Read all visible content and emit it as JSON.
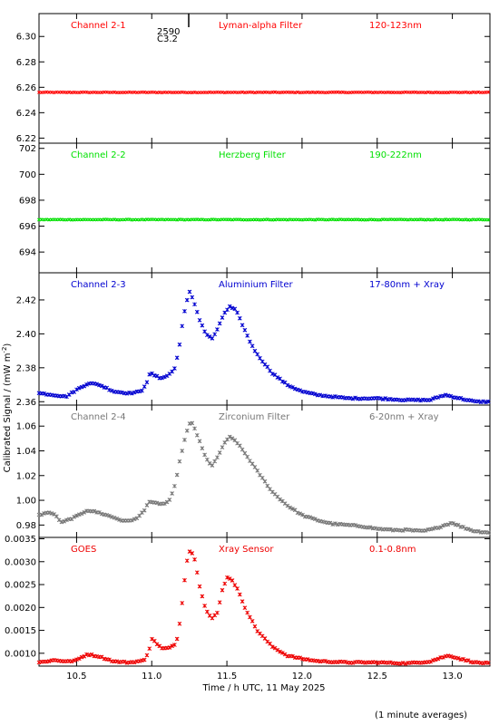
{
  "figure": {
    "ylabel": "Calibrated Signal / (mW m",
    "ylabel_exp": "-2",
    "ylabel_close": ")",
    "xlabel": "Time / h UTC, 11 May 2025",
    "footnote": "(1 minute averages)",
    "event_marker": {
      "label_top": "2590",
      "label_bottom": "C3.2",
      "time": 11.25
    }
  },
  "chart_data": [
    {
      "type": "scatter",
      "channel": "Channel 2-1",
      "filter": "Lyman-alpha Filter",
      "band": "120-123nm",
      "color": "#ff0000",
      "xlim": [
        10.25,
        13.25
      ],
      "ylim": [
        6.216,
        6.318
      ],
      "yticks": [
        6.22,
        6.24,
        6.26,
        6.28,
        6.3
      ],
      "ytick_labels": [
        "6.22",
        "6.24",
        "6.26",
        "6.28",
        "6.30"
      ],
      "points": [
        [
          10.25,
          6.256
        ],
        [
          10.5,
          6.256
        ],
        [
          10.75,
          6.256
        ],
        [
          11.0,
          6.256
        ],
        [
          11.25,
          6.256
        ],
        [
          11.5,
          6.256
        ],
        [
          11.75,
          6.256
        ],
        [
          12.0,
          6.256
        ],
        [
          12.25,
          6.256
        ],
        [
          12.5,
          6.256
        ],
        [
          12.75,
          6.256
        ],
        [
          13.0,
          6.256
        ],
        [
          13.25,
          6.256
        ]
      ]
    },
    {
      "type": "scatter",
      "channel": "Channel 2-2",
      "filter": "Herzberg Filter",
      "band": "190-222nm",
      "color": "#00e000",
      "xlim": [
        10.25,
        13.25
      ],
      "ylim": [
        692.4,
        702.4
      ],
      "yticks": [
        694,
        696,
        698,
        700,
        702
      ],
      "ytick_labels": [
        "694",
        "696",
        "698",
        "700",
        "702"
      ],
      "points": [
        [
          10.25,
          696.5
        ],
        [
          10.5,
          696.5
        ],
        [
          10.75,
          696.5
        ],
        [
          11.0,
          696.5
        ],
        [
          11.25,
          696.5
        ],
        [
          11.5,
          696.5
        ],
        [
          11.75,
          696.5
        ],
        [
          12.0,
          696.5
        ],
        [
          12.25,
          696.5
        ],
        [
          12.5,
          696.5
        ],
        [
          12.75,
          696.5
        ],
        [
          13.0,
          696.5
        ],
        [
          13.25,
          696.5
        ]
      ]
    },
    {
      "type": "scatter",
      "channel": "Channel 2-3",
      "filter": "Aluminium Filter",
      "band": "17-80nm + Xray",
      "color": "#0000d0",
      "xlim": [
        10.25,
        13.25
      ],
      "ylim": [
        2.358,
        2.436
      ],
      "yticks": [
        2.36,
        2.38,
        2.4,
        2.42
      ],
      "ytick_labels": [
        "2.36",
        "2.38",
        "2.40",
        "2.42"
      ],
      "points": [
        [
          10.25,
          2.365
        ],
        [
          10.35,
          2.364
        ],
        [
          10.43,
          2.363
        ],
        [
          10.5,
          2.367
        ],
        [
          10.58,
          2.371
        ],
        [
          10.65,
          2.37
        ],
        [
          10.75,
          2.366
        ],
        [
          10.85,
          2.365
        ],
        [
          10.93,
          2.366
        ],
        [
          10.97,
          2.372
        ],
        [
          10.99,
          2.377
        ],
        [
          11.05,
          2.374
        ],
        [
          11.1,
          2.375
        ],
        [
          11.15,
          2.379
        ],
        [
          11.18,
          2.39
        ],
        [
          11.2,
          2.404
        ],
        [
          11.22,
          2.414
        ],
        [
          11.25,
          2.425
        ],
        [
          11.28,
          2.419
        ],
        [
          11.32,
          2.408
        ],
        [
          11.36,
          2.4
        ],
        [
          11.4,
          2.397
        ],
        [
          11.44,
          2.403
        ],
        [
          11.48,
          2.412
        ],
        [
          11.52,
          2.416
        ],
        [
          11.56,
          2.414
        ],
        [
          11.6,
          2.406
        ],
        [
          11.65,
          2.396
        ],
        [
          11.7,
          2.388
        ],
        [
          11.8,
          2.377
        ],
        [
          11.9,
          2.37
        ],
        [
          12.0,
          2.366
        ],
        [
          12.1,
          2.364
        ],
        [
          12.3,
          2.362
        ],
        [
          12.5,
          2.362
        ],
        [
          12.7,
          2.361
        ],
        [
          12.85,
          2.361
        ],
        [
          12.95,
          2.364
        ],
        [
          13.05,
          2.362
        ],
        [
          13.15,
          2.36
        ],
        [
          13.25,
          2.36
        ]
      ]
    },
    {
      "type": "scatter",
      "channel": "Channel 2-4",
      "filter": "Zirconium Filter",
      "band": "6-20nm + Xray",
      "color": "#777777",
      "xlim": [
        10.25,
        13.25
      ],
      "ylim": [
        0.97,
        1.077
      ],
      "yticks": [
        0.98,
        1.0,
        1.02,
        1.04,
        1.06
      ],
      "ytick_labels": [
        "0.98",
        "1.00",
        "1.02",
        "1.04",
        "1.06"
      ],
      "points": [
        [
          10.25,
          0.988
        ],
        [
          10.3,
          0.99
        ],
        [
          10.35,
          0.989
        ],
        [
          10.4,
          0.982
        ],
        [
          10.5,
          0.987
        ],
        [
          10.57,
          0.992
        ],
        [
          10.65,
          0.99
        ],
        [
          10.75,
          0.986
        ],
        [
          10.82,
          0.983
        ],
        [
          10.9,
          0.985
        ],
        [
          10.95,
          0.992
        ],
        [
          10.98,
          0.999
        ],
        [
          11.0,
          0.998
        ],
        [
          11.08,
          0.997
        ],
        [
          11.12,
          1.0
        ],
        [
          11.15,
          1.01
        ],
        [
          11.18,
          1.028
        ],
        [
          11.21,
          1.045
        ],
        [
          11.24,
          1.058
        ],
        [
          11.26,
          1.064
        ],
        [
          11.28,
          1.06
        ],
        [
          11.32,
          1.047
        ],
        [
          11.36,
          1.034
        ],
        [
          11.4,
          1.028
        ],
        [
          11.44,
          1.035
        ],
        [
          11.48,
          1.046
        ],
        [
          11.52,
          1.051
        ],
        [
          11.56,
          1.048
        ],
        [
          11.62,
          1.038
        ],
        [
          11.7,
          1.024
        ],
        [
          11.8,
          1.007
        ],
        [
          11.9,
          0.996
        ],
        [
          12.0,
          0.988
        ],
        [
          12.1,
          0.984
        ],
        [
          12.2,
          0.981
        ],
        [
          12.3,
          0.98
        ],
        [
          12.4,
          0.979
        ],
        [
          12.5,
          0.977
        ],
        [
          12.6,
          0.976
        ],
        [
          12.7,
          0.976
        ],
        [
          12.8,
          0.975
        ],
        [
          12.88,
          0.977
        ],
        [
          12.95,
          0.98
        ],
        [
          13.0,
          0.982
        ],
        [
          13.05,
          0.979
        ],
        [
          13.15,
          0.975
        ],
        [
          13.25,
          0.974
        ]
      ]
    },
    {
      "type": "scatter",
      "channel": "GOES",
      "filter": "Xray Sensor",
      "band": "0.1-0.8nm",
      "color": "#ee0000",
      "xlim": [
        10.25,
        13.25
      ],
      "ylim": [
        0.00072,
        0.00353
      ],
      "yticks": [
        0.001,
        0.0015,
        0.002,
        0.0025,
        0.003,
        0.0035
      ],
      "ytick_labels": [
        "0.0010",
        "0.0015",
        "0.0020",
        "0.0025",
        "0.0030",
        "0.0035"
      ],
      "points": [
        [
          10.25,
          0.0008
        ],
        [
          10.35,
          0.00085
        ],
        [
          10.45,
          0.00082
        ],
        [
          10.5,
          0.00085
        ],
        [
          10.57,
          0.00098
        ],
        [
          10.65,
          0.00093
        ],
        [
          10.75,
          0.00082
        ],
        [
          10.85,
          0.0008
        ],
        [
          10.95,
          0.00084
        ],
        [
          10.98,
          0.00105
        ],
        [
          11.0,
          0.00132
        ],
        [
          11.03,
          0.00122
        ],
        [
          11.07,
          0.0011
        ],
        [
          11.12,
          0.00112
        ],
        [
          11.16,
          0.0012
        ],
        [
          11.18,
          0.0015
        ],
        [
          11.2,
          0.00205
        ],
        [
          11.22,
          0.00265
        ],
        [
          11.24,
          0.00315
        ],
        [
          11.26,
          0.00327
        ],
        [
          11.29,
          0.003
        ],
        [
          11.32,
          0.00245
        ],
        [
          11.36,
          0.00195
        ],
        [
          11.4,
          0.00175
        ],
        [
          11.44,
          0.0019
        ],
        [
          11.47,
          0.0024
        ],
        [
          11.5,
          0.00265
        ],
        [
          11.53,
          0.00263
        ],
        [
          11.57,
          0.0024
        ],
        [
          11.62,
          0.002
        ],
        [
          11.7,
          0.0015
        ],
        [
          11.8,
          0.00115
        ],
        [
          11.9,
          0.00095
        ],
        [
          12.0,
          0.00088
        ],
        [
          12.1,
          0.00083
        ],
        [
          12.3,
          0.0008
        ],
        [
          12.5,
          0.0008
        ],
        [
          12.7,
          0.00078
        ],
        [
          12.85,
          0.00082
        ],
        [
          12.92,
          0.0009
        ],
        [
          12.98,
          0.00095
        ],
        [
          13.05,
          0.00088
        ],
        [
          13.15,
          0.0008
        ],
        [
          13.25,
          0.00078
        ]
      ]
    }
  ],
  "xaxis": {
    "ticks": [
      10.5,
      11.0,
      11.5,
      12.0,
      12.5,
      13.0
    ],
    "tick_labels": [
      "10.5",
      "11.0",
      "11.5",
      "12.0",
      "12.5",
      "13.0"
    ]
  }
}
